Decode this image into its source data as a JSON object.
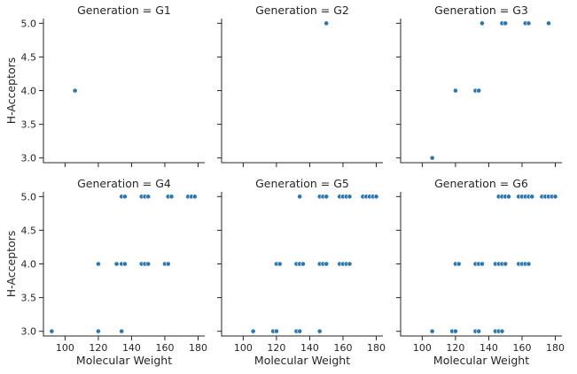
{
  "chart_data": {
    "type": "scatter",
    "layout": "facet-grid",
    "marker_color": "#2a78b1",
    "axis_color": "#262626",
    "x_label": "Molecular Weight",
    "y_label": "H-Acceptors",
    "x_ticks": [
      100,
      120,
      140,
      160,
      180
    ],
    "y_ticks": [
      3.0,
      3.5,
      4.0,
      4.5,
      5.0
    ],
    "y_tick_labels": [
      "3.0",
      "3.5",
      "4.0",
      "4.5",
      "5.0"
    ],
    "xlim": [
      87,
      184
    ],
    "ylim": [
      2.93,
      5.07
    ],
    "grid": false,
    "legend": "none",
    "panels": [
      {
        "title": "Generation = G1",
        "points": [
          [
            106,
            4
          ]
        ]
      },
      {
        "title": "Generation = G2",
        "points": [
          [
            150,
            5
          ]
        ]
      },
      {
        "title": "Generation = G3",
        "points": [
          [
            106,
            3
          ],
          [
            120,
            4
          ],
          [
            132,
            4
          ],
          [
            134,
            4
          ],
          [
            136,
            5
          ],
          [
            148,
            5
          ],
          [
            150,
            5
          ],
          [
            162,
            5
          ],
          [
            164,
            5
          ],
          [
            176,
            5
          ]
        ]
      },
      {
        "title": "Generation = G4",
        "points": [
          [
            92,
            3
          ],
          [
            120,
            3
          ],
          [
            134,
            3
          ],
          [
            120,
            4
          ],
          [
            131,
            4
          ],
          [
            134,
            4
          ],
          [
            136,
            4
          ],
          [
            146,
            4
          ],
          [
            148,
            4
          ],
          [
            150,
            4
          ],
          [
            160,
            4
          ],
          [
            162,
            4
          ],
          [
            134,
            5
          ],
          [
            136,
            5
          ],
          [
            146,
            5
          ],
          [
            148,
            5
          ],
          [
            150,
            5
          ],
          [
            162,
            5
          ],
          [
            164,
            5
          ],
          [
            174,
            5
          ],
          [
            176,
            5
          ],
          [
            178,
            5
          ]
        ]
      },
      {
        "title": "Generation = G5",
        "points": [
          [
            106,
            3
          ],
          [
            118,
            3
          ],
          [
            120,
            3
          ],
          [
            132,
            3
          ],
          [
            134,
            3
          ],
          [
            146,
            3
          ],
          [
            120,
            4
          ],
          [
            122,
            4
          ],
          [
            132,
            4
          ],
          [
            134,
            4
          ],
          [
            136,
            4
          ],
          [
            146,
            4
          ],
          [
            148,
            4
          ],
          [
            150,
            4
          ],
          [
            158,
            4
          ],
          [
            160,
            4
          ],
          [
            162,
            4
          ],
          [
            164,
            4
          ],
          [
            134,
            5
          ],
          [
            146,
            5
          ],
          [
            148,
            5
          ],
          [
            150,
            5
          ],
          [
            158,
            5
          ],
          [
            160,
            5
          ],
          [
            162,
            5
          ],
          [
            164,
            5
          ],
          [
            172,
            5
          ],
          [
            174,
            5
          ],
          [
            176,
            5
          ],
          [
            178,
            5
          ],
          [
            180,
            5
          ]
        ]
      },
      {
        "title": "Generation = G6",
        "points": [
          [
            106,
            3
          ],
          [
            118,
            3
          ],
          [
            120,
            3
          ],
          [
            132,
            3
          ],
          [
            134,
            3
          ],
          [
            144,
            3
          ],
          [
            146,
            3
          ],
          [
            148,
            3
          ],
          [
            120,
            4
          ],
          [
            122,
            4
          ],
          [
            132,
            4
          ],
          [
            134,
            4
          ],
          [
            136,
            4
          ],
          [
            144,
            4
          ],
          [
            146,
            4
          ],
          [
            148,
            4
          ],
          [
            150,
            4
          ],
          [
            158,
            4
          ],
          [
            160,
            4
          ],
          [
            162,
            4
          ],
          [
            164,
            4
          ],
          [
            146,
            5
          ],
          [
            148,
            5
          ],
          [
            150,
            5
          ],
          [
            152,
            5
          ],
          [
            158,
            5
          ],
          [
            160,
            5
          ],
          [
            162,
            5
          ],
          [
            164,
            5
          ],
          [
            166,
            5
          ],
          [
            172,
            5
          ],
          [
            174,
            5
          ],
          [
            176,
            5
          ],
          [
            178,
            5
          ],
          [
            180,
            5
          ]
        ]
      }
    ]
  }
}
